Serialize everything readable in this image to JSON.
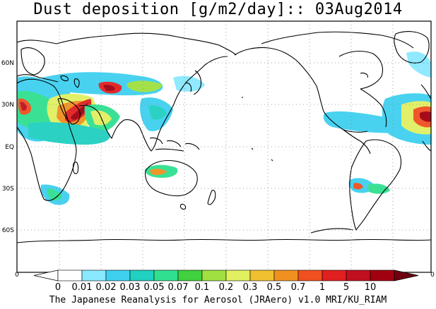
{
  "title": "Dust deposition [g/m2/day]:: 03Aug2014",
  "footer": "The Japanese Reanalysis for Aerosol (JRAero) v1.0 MRI/KU_RIAM",
  "map": {
    "projection": "cylindrical, centered on 180",
    "latitude_labels": [
      "60N",
      "30N",
      "EQ",
      "30S",
      "60S"
    ],
    "gridlines": "dotted"
  },
  "colorbar": {
    "edge_labels": [
      "0",
      "0"
    ],
    "tick_labels": [
      "0",
      "0.01",
      "0.02",
      "0.03",
      "0.05",
      "0.07",
      "0.1",
      "0.2",
      "0.3",
      "0.5",
      "0.7",
      "1",
      "5",
      "10"
    ],
    "colors": [
      "#ffffff",
      "#ffffff",
      "#8ae8ff",
      "#3fd0f0",
      "#20d0c0",
      "#30e090",
      "#40d040",
      "#a0e040",
      "#e0f060",
      "#f0c030",
      "#f09020",
      "#f05020",
      "#e02020",
      "#c01020",
      "#a00010",
      "#6e0010"
    ]
  }
}
